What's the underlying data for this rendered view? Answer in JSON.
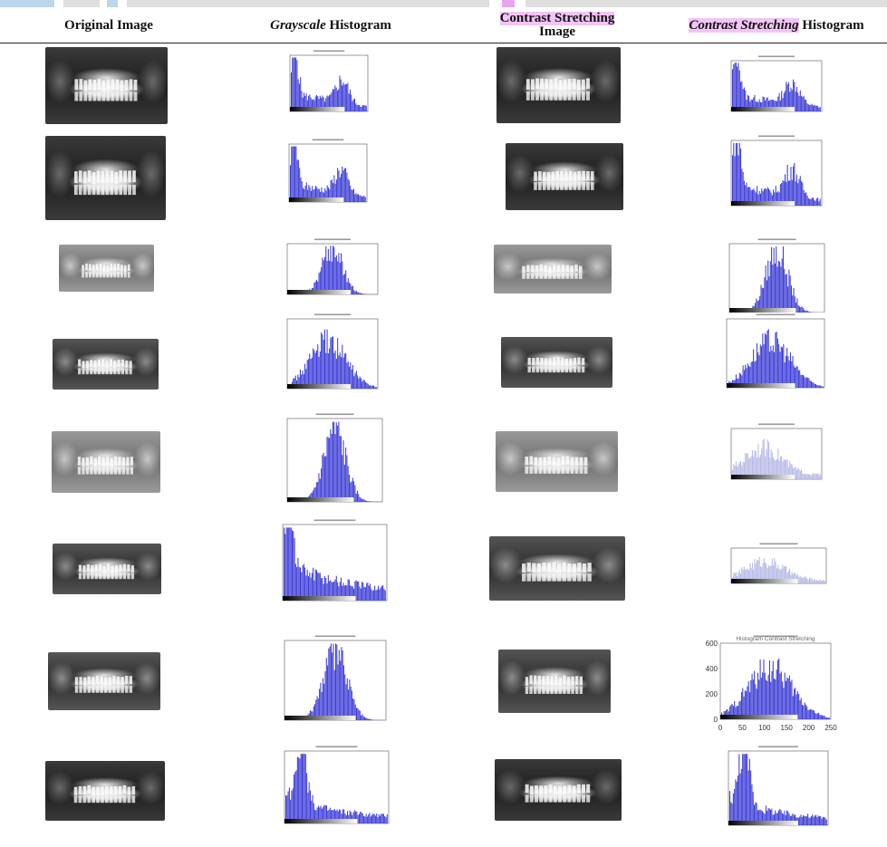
{
  "headers": {
    "col1": "Original Image",
    "col2_em": "Grayscale",
    "col2_rest": " Histogram",
    "col3_line1": "Contrast Stretching",
    "col3_line2": "Image",
    "col4_em": "Contrast Stretching",
    "col4_rest": " Histogram"
  },
  "colors": {
    "histogram_blue": "#3a3ad6",
    "histogram_pale": "#b7b9e6",
    "highlight_pink": "#f3c4f7",
    "highlight_blue": "#bcd6ea"
  },
  "rows": [
    {
      "orig_style": "dark",
      "gray_hist": "bimodal",
      "cs_style": "dark",
      "cs_hist": "bimodal"
    },
    {
      "orig_style": "dark",
      "gray_hist": "bimodal",
      "cs_style": "dark",
      "cs_hist": "bimodal"
    },
    {
      "orig_style": "light",
      "gray_hist": "peak-center",
      "cs_style": "light",
      "cs_hist": "peak-center"
    },
    {
      "orig_style": "medium",
      "gray_hist": "broad",
      "cs_style": "medium",
      "cs_hist": "broad"
    },
    {
      "orig_style": "light",
      "gray_hist": "peak-center",
      "cs_style": "light",
      "cs_hist": "pale"
    },
    {
      "orig_style": "medium",
      "gray_hist": "left-skew",
      "cs_style": "medium",
      "cs_hist": "pale"
    },
    {
      "orig_style": "medium",
      "gray_hist": "peak-center",
      "cs_style": "medium",
      "cs_hist": "labeled"
    },
    {
      "orig_style": "dark",
      "gray_hist": "left-spike",
      "cs_style": "dark",
      "cs_hist": "left-spike"
    }
  ],
  "row7_cs_axis": {
    "title": "Histogram Contrast Stretching",
    "yticks": [
      "600",
      "400",
      "200",
      "0"
    ],
    "xticks": [
      "0",
      "50",
      "100",
      "150",
      "200",
      "250"
    ]
  }
}
